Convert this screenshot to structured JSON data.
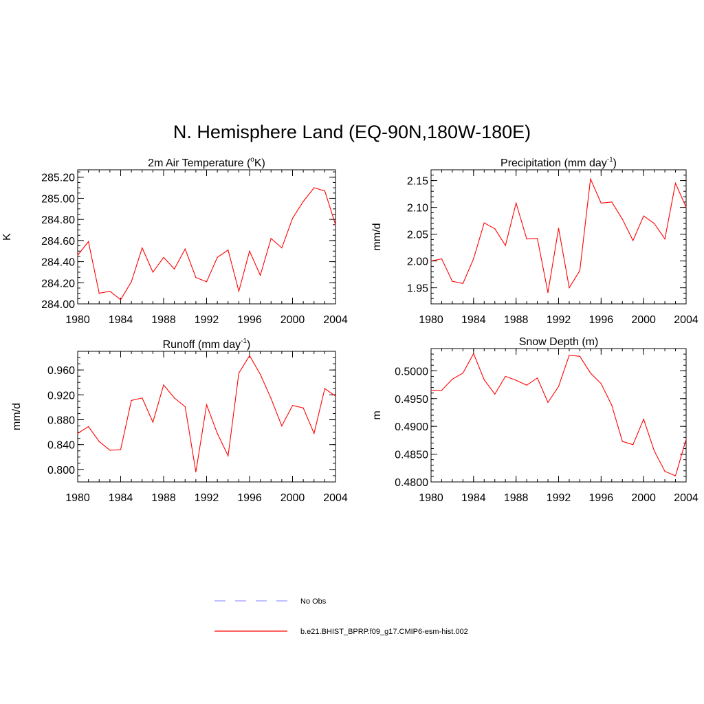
{
  "figure": {
    "title": "N. Hemisphere Land (EQ-90N,180W-180E)"
  },
  "colors": {
    "model_line": "#ff0000",
    "obs_line": "#9999ff",
    "axis": "#000000"
  },
  "legend": {
    "obs_label": "No Obs",
    "model_label": "b.e21.BHIST_BPRP.f09_g17.CMIP6-esm-hist.002"
  },
  "chart_data": [
    {
      "type": "line",
      "title": "2m Air Temperature (oK)",
      "title_main": "2m Air Temperature (",
      "title_sup": "o",
      "title_tail": "K)",
      "xlabel": "",
      "ylabel": "K",
      "xlim": [
        1980,
        2004
      ],
      "ylim": [
        284.0,
        285.27
      ],
      "xticks": [
        1980,
        1984,
        1988,
        1992,
        1996,
        2000,
        2004
      ],
      "xtick_labels": [
        "1980",
        "1984",
        "1988",
        "1992",
        "1996",
        "2000",
        "2004"
      ],
      "yticks": [
        284.0,
        284.2,
        284.4,
        284.6,
        284.8,
        285.0,
        285.2
      ],
      "ytick_labels": [
        "284.00",
        "284.20",
        "284.40",
        "284.60",
        "284.80",
        "285.00",
        "285.20"
      ],
      "yminor_step": 0.05,
      "series": [
        {
          "name": "b.e21.BHIST_BPRP.f09_g17.CMIP6-esm-hist.002",
          "x": [
            1980,
            1981,
            1982,
            1983,
            1984,
            1985,
            1986,
            1987,
            1988,
            1989,
            1990,
            1991,
            1992,
            1993,
            1994,
            1995,
            1996,
            1997,
            1998,
            1999,
            2000,
            2001,
            2002,
            2003,
            2004
          ],
          "values": [
            284.46,
            284.59,
            284.1,
            284.12,
            284.04,
            284.21,
            284.53,
            284.3,
            284.44,
            284.33,
            284.52,
            284.25,
            284.21,
            284.44,
            284.51,
            284.12,
            284.5,
            284.27,
            284.62,
            284.53,
            284.81,
            284.97,
            285.1,
            285.07,
            284.75
          ]
        }
      ]
    },
    {
      "type": "line",
      "title": "Precipitation (mm day-1)",
      "title_main": "Precipitation (mm day",
      "title_sup": "-1",
      "title_tail": ")",
      "xlabel": "",
      "ylabel": "mm/d",
      "xlim": [
        1980,
        2004
      ],
      "ylim": [
        1.92,
        2.17
      ],
      "xticks": [
        1980,
        1984,
        1988,
        1992,
        1996,
        2000,
        2004
      ],
      "xtick_labels": [
        "1980",
        "1984",
        "1988",
        "1992",
        "1996",
        "2000",
        "2004"
      ],
      "yticks": [
        1.95,
        2.0,
        2.05,
        2.1,
        2.15
      ],
      "ytick_labels": [
        "1.95",
        "2.00",
        "2.05",
        "2.10",
        "2.15"
      ],
      "yminor_step": 0.01,
      "series": [
        {
          "name": "b.e21.BHIST_BPRP.f09_g17.CMIP6-esm-hist.002",
          "x": [
            1980,
            1981,
            1982,
            1983,
            1984,
            1985,
            1986,
            1987,
            1988,
            1989,
            1990,
            1991,
            1992,
            1993,
            1994,
            1995,
            1996,
            1997,
            1998,
            1999,
            2000,
            2001,
            2002,
            2003,
            2004
          ],
          "values": [
            2.0,
            2.004,
            1.962,
            1.958,
            2.004,
            2.071,
            2.06,
            2.029,
            2.108,
            2.041,
            2.042,
            1.941,
            2.061,
            1.95,
            1.982,
            2.153,
            2.108,
            2.11,
            2.078,
            2.038,
            2.084,
            2.07,
            2.041,
            2.145,
            2.1
          ]
        }
      ]
    },
    {
      "type": "line",
      "title": "Runoff (mm day-1)",
      "title_main": "Runoff (mm day",
      "title_sup": "-1",
      "title_tail": ")",
      "xlabel": "",
      "ylabel": "mm/d",
      "xlim": [
        1980,
        2004
      ],
      "ylim": [
        0.78,
        0.99
      ],
      "xticks": [
        1980,
        1984,
        1988,
        1992,
        1996,
        2000,
        2004
      ],
      "xtick_labels": [
        "1980",
        "1984",
        "1988",
        "1992",
        "1996",
        "2000",
        "2004"
      ],
      "yticks": [
        0.8,
        0.84,
        0.88,
        0.92,
        0.96
      ],
      "ytick_labels": [
        "0.800",
        "0.840",
        "0.880",
        "0.920",
        "0.960"
      ],
      "yminor_step": 0.01,
      "series": [
        {
          "name": "b.e21.BHIST_BPRP.f09_g17.CMIP6-esm-hist.002",
          "x": [
            1980,
            1981,
            1982,
            1983,
            1984,
            1985,
            1986,
            1987,
            1988,
            1989,
            1990,
            1991,
            1992,
            1993,
            1994,
            1995,
            1996,
            1997,
            1998,
            1999,
            2000,
            2001,
            2002,
            2003,
            2004
          ],
          "values": [
            0.858,
            0.869,
            0.845,
            0.831,
            0.832,
            0.911,
            0.915,
            0.876,
            0.936,
            0.915,
            0.901,
            0.796,
            0.904,
            0.858,
            0.822,
            0.955,
            0.983,
            0.953,
            0.914,
            0.87,
            0.903,
            0.899,
            0.858,
            0.93,
            0.918
          ]
        }
      ]
    },
    {
      "type": "line",
      "title": "Snow Depth (m)",
      "title_main": "Snow Depth (m)",
      "title_sup": "",
      "title_tail": "",
      "xlabel": "",
      "ylabel": "m",
      "xlim": [
        1980,
        2004
      ],
      "ylim": [
        0.48,
        0.504
      ],
      "xticks": [
        1980,
        1984,
        1988,
        1992,
        1996,
        2000,
        2004
      ],
      "xtick_labels": [
        "1980",
        "1984",
        "1988",
        "1992",
        "1996",
        "2000",
        "2004"
      ],
      "yticks": [
        0.48,
        0.485,
        0.49,
        0.495,
        0.5
      ],
      "ytick_labels": [
        "0.4800",
        "0.4850",
        "0.4900",
        "0.4950",
        "0.5000"
      ],
      "yminor_step": 0.001,
      "series": [
        {
          "name": "b.e21.BHIST_BPRP.f09_g17.CMIP6-esm-hist.002",
          "x": [
            1980,
            1981,
            1982,
            1983,
            1984,
            1985,
            1986,
            1987,
            1988,
            1989,
            1990,
            1991,
            1992,
            1993,
            1994,
            1995,
            1996,
            1997,
            1998,
            1999,
            2000,
            2001,
            2002,
            2003,
            2004
          ],
          "values": [
            0.4965,
            0.4965,
            0.4985,
            0.4996,
            0.5031,
            0.4984,
            0.4958,
            0.499,
            0.4983,
            0.4974,
            0.4987,
            0.4943,
            0.4972,
            0.5028,
            0.5026,
            0.4996,
            0.4977,
            0.4938,
            0.4873,
            0.4867,
            0.4913,
            0.4856,
            0.4819,
            0.4811,
            0.4877
          ]
        }
      ]
    }
  ]
}
